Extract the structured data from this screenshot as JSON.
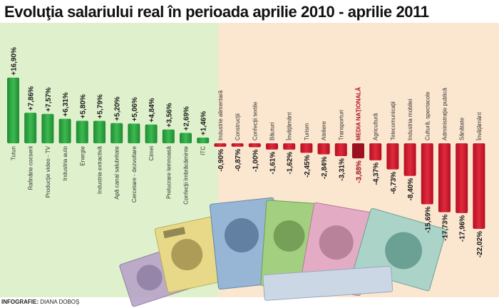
{
  "title": "Evoluţia salariului real în perioada aprilie 2010 - aprilie 2011",
  "credit": {
    "label": "INFOGRAFIE:",
    "author": "DIANA DOBOŞ"
  },
  "colors": {
    "positive": "#2fa542",
    "negative": "#d4182c",
    "national": "#9c1020",
    "bg_left": "#dff1cc",
    "bg_right": "#fbe6cf"
  },
  "chart_data": {
    "type": "bar",
    "title": "Evoluţia salariului real în perioada aprilie 2010 - aprilie 2011",
    "xlabel": "",
    "ylabel": "",
    "unit": "%",
    "grid": false,
    "ylim": [
      -22.02,
      16.9
    ],
    "categories": [
      "Tutun",
      "Rafinărie cocserii",
      "Producţie video - TV",
      "Industria auto",
      "Energie",
      "Industria extractivă",
      "Apă canal salubritate",
      "Cercetare - dezvoltare",
      "Cimei",
      "Prelucrare lemnoasă",
      "Confecţii îmbrăcăminte",
      "ITC",
      "Industrie alimentară",
      "Construcţii",
      "Confecţii textile",
      "Băuturi",
      "Învăţământ",
      "Turism",
      "Ateliere",
      "Transporturi",
      "MEDIA NAŢIONALĂ",
      "Agricultură",
      "Telecomunicaţii",
      "Industria mobilei",
      "Cultură, spectacole",
      "Administraţie publică",
      "Sănătate",
      "Învăţământ"
    ],
    "values": [
      16.9,
      7.86,
      7.57,
      6.31,
      5.8,
      5.79,
      5.2,
      5.06,
      4.84,
      3.56,
      2.69,
      1.46,
      -0.9,
      -0.87,
      -1.0,
      -1.61,
      -1.62,
      -2.45,
      -2.84,
      -3.31,
      -3.88,
      -4.37,
      -6.73,
      -8.4,
      -15.69,
      -17.73,
      -17.96,
      -22.02
    ],
    "labels": [
      "+16,90%",
      "+7,86%",
      "+7,57%",
      "+6,31%",
      "+5,80%",
      "+5,79%",
      "+5,20%",
      "+5,06%",
      "+4,84%",
      "+3,56%",
      "+2,69%",
      "+1,46%",
      "-0,90%",
      "-0,87%",
      "-1,00%",
      "-1,61%",
      "-1,62%",
      "-2,45%",
      "-2,84%",
      "-3,31%",
      "-3,88%",
      "-4,37%",
      "-6,73%",
      "-8,40%",
      "-15,69%",
      "-17,73%",
      "-17,96%",
      "-22,02%"
    ],
    "highlight": "MEDIA NAŢIONALĂ"
  }
}
